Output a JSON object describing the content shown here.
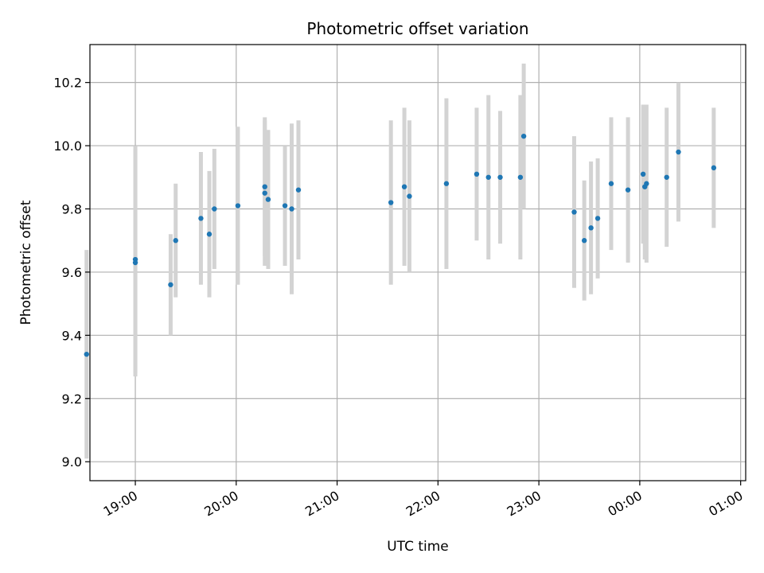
{
  "chart_data": {
    "type": "scatter",
    "title": "Photometric offset variation",
    "xlabel": "UTC time",
    "ylabel": "Photometric offset",
    "xlim": [
      "18:33",
      "01:03"
    ],
    "ylim": [
      8.94,
      10.32
    ],
    "x_ticks": [
      "19:00",
      "20:00",
      "21:00",
      "22:00",
      "23:00",
      "00:00",
      "01:00"
    ],
    "y_ticks": [
      9.0,
      9.2,
      9.4,
      9.6,
      9.8,
      10.0,
      10.2
    ],
    "grid": true,
    "colors": {
      "points": "#1f77b4",
      "errorbars": "#d3d3d3",
      "grid": "#b0b0b0"
    },
    "points": [
      {
        "time": "18:31",
        "y": 9.34,
        "err": 0.33
      },
      {
        "time": "19:00",
        "y": 9.64,
        "err": 0.36
      },
      {
        "time": "19:00",
        "y": 9.63,
        "err": 0.36
      },
      {
        "time": "19:21",
        "y": 9.56,
        "err": 0.16
      },
      {
        "time": "19:24",
        "y": 9.7,
        "err": 0.18
      },
      {
        "time": "19:39",
        "y": 9.77,
        "err": 0.21
      },
      {
        "time": "19:44",
        "y": 9.72,
        "err": 0.2
      },
      {
        "time": "19:47",
        "y": 9.8,
        "err": 0.19
      },
      {
        "time": "20:01",
        "y": 9.81,
        "err": 0.25
      },
      {
        "time": "20:17",
        "y": 9.87,
        "err": 0.22
      },
      {
        "time": "20:17",
        "y": 9.85,
        "err": 0.23
      },
      {
        "time": "20:19",
        "y": 9.83,
        "err": 0.22
      },
      {
        "time": "20:29",
        "y": 9.81,
        "err": 0.19
      },
      {
        "time": "20:33",
        "y": 9.8,
        "err": 0.27
      },
      {
        "time": "20:37",
        "y": 9.86,
        "err": 0.22
      },
      {
        "time": "21:32",
        "y": 9.82,
        "err": 0.26
      },
      {
        "time": "21:40",
        "y": 9.87,
        "err": 0.25
      },
      {
        "time": "21:43",
        "y": 9.84,
        "err": 0.24
      },
      {
        "time": "22:05",
        "y": 9.88,
        "err": 0.27
      },
      {
        "time": "22:23",
        "y": 9.91,
        "err": 0.21
      },
      {
        "time": "22:30",
        "y": 9.9,
        "err": 0.26
      },
      {
        "time": "22:37",
        "y": 9.9,
        "err": 0.21
      },
      {
        "time": "22:49",
        "y": 9.9,
        "err": 0.26
      },
      {
        "time": "22:51",
        "y": 10.03,
        "err": 0.23
      },
      {
        "time": "23:21",
        "y": 9.79,
        "err": 0.24
      },
      {
        "time": "23:27",
        "y": 9.7,
        "err": 0.19
      },
      {
        "time": "23:31",
        "y": 9.74,
        "err": 0.21
      },
      {
        "time": "23:35",
        "y": 9.77,
        "err": 0.19
      },
      {
        "time": "23:43",
        "y": 9.88,
        "err": 0.21
      },
      {
        "time": "23:53",
        "y": 9.86,
        "err": 0.23
      },
      {
        "time": "00:02",
        "y": 9.91,
        "err": 0.22
      },
      {
        "time": "00:03",
        "y": 9.87,
        "err": 0.23
      },
      {
        "time": "00:04",
        "y": 9.88,
        "err": 0.25
      },
      {
        "time": "00:16",
        "y": 9.9,
        "err": 0.22
      },
      {
        "time": "00:23",
        "y": 9.98,
        "err": 0.22
      },
      {
        "time": "00:44",
        "y": 9.93,
        "err": 0.19
      }
    ]
  }
}
